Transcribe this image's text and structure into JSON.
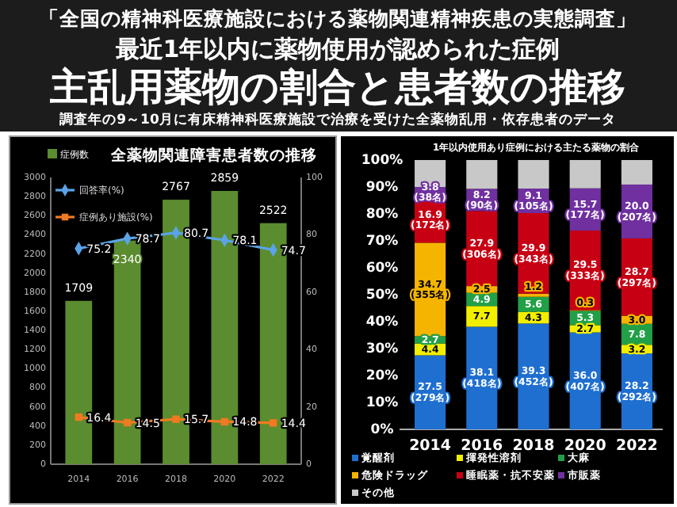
{
  "chart_data": [
    {
      "type": "other",
      "title": "主乱用薬物の割合と患者数の推移",
      "subtitle": "調査年の9～10月に有床精神科医療施設で治療を受けた全薬物乱用・依存患者のデータ",
      "annotations": [
        "「全国の精神科医療施設における薬物関連精神疾患の実態調査」",
        "最近1年以内に薬物使用が認められた症例"
      ]
    },
    {
      "type": "bar",
      "title": "全薬物関連障害患者数の推移",
      "categories": [
        "2014",
        "2016",
        "2018",
        "2020",
        "2022"
      ],
      "ylim": [
        0,
        3000
      ],
      "yticks": [
        0,
        200,
        400,
        600,
        800,
        1000,
        1200,
        1400,
        1600,
        1800,
        2000,
        2200,
        2400,
        2600,
        2800,
        3000
      ],
      "y2lim": [
        0,
        100
      ],
      "y2ticks": [
        0,
        20,
        40,
        60,
        80,
        100
      ],
      "data_labels": true,
      "legend": "top left",
      "series": [
        {
          "name": "症例数",
          "type": "bar",
          "color": "#5b8c2f",
          "values": [
            1709,
            2340,
            2767,
            2859,
            2522
          ]
        },
        {
          "name": "回答率(%)",
          "type": "line",
          "axis": "y2",
          "marker": "diamond",
          "color": "#5ba3e6",
          "values": [
            75.2,
            78.7,
            80.7,
            78.1,
            74.7
          ]
        },
        {
          "name": "症例あり施設(%)",
          "type": "line",
          "axis": "y2",
          "marker": "square",
          "color": "#f07a22",
          "values": [
            16.4,
            14.5,
            15.7,
            14.8,
            14.4
          ]
        }
      ]
    },
    {
      "type": "bar",
      "stacked": true,
      "title": "1年以内使用あり症例における主たる薬物の割合",
      "categories": [
        "2014",
        "2016",
        "2018",
        "2020",
        "2022"
      ],
      "ylim": [
        0,
        100
      ],
      "yticks": [
        {
          "value": 0,
          "label": "0%"
        },
        {
          "value": 10,
          "label": "10%"
        },
        {
          "value": 20,
          "label": "20%"
        },
        {
          "value": 30,
          "label": "30%"
        },
        {
          "value": 40,
          "label": "40%"
        },
        {
          "value": 50,
          "label": "50%"
        },
        {
          "value": 60,
          "label": "60%"
        },
        {
          "value": 70,
          "label": "70%"
        },
        {
          "value": 80,
          "label": "80%"
        },
        {
          "value": 90,
          "label": "90%"
        },
        {
          "value": 100,
          "label": "100%"
        }
      ],
      "legend": "bottom",
      "series": [
        {
          "name": "覚醒剤",
          "color": "#1f6fd0",
          "values": [
            27.5,
            38.1,
            39.3,
            36.0,
            28.2
          ],
          "value_labels": [
            "27.5\n(279名)",
            "38.1\n(418名)",
            "39.3\n(452名)",
            "36.0\n(407名)",
            "28.2\n(292名)"
          ]
        },
        {
          "name": "揮発性溶剤",
          "color": "#f2ee00",
          "values": [
            4.4,
            7.7,
            4.3,
            2.7,
            3.2
          ],
          "value_labels": [
            "4.4",
            "7.7",
            "4.3",
            "2.7",
            "3.2"
          ]
        },
        {
          "name": "大麻",
          "color": "#22a048",
          "values": [
            2.7,
            4.9,
            5.6,
            5.3,
            7.8
          ],
          "value_labels": [
            "2.7",
            "4.9",
            "5.6",
            "5.3",
            "7.8"
          ]
        },
        {
          "name": "危険ドラッグ",
          "color": "#f5b400",
          "values": [
            34.7,
            2.5,
            1.2,
            0.3,
            3.0
          ],
          "value_labels": [
            "34.7\n(355名)",
            "2.5",
            "1.2",
            "0.3",
            "3.0"
          ]
        },
        {
          "name": "睡眠薬・抗不安薬",
          "color": "#c80014",
          "values": [
            16.9,
            27.9,
            29.9,
            29.5,
            28.7
          ],
          "value_labels": [
            "16.9\n(172名)",
            "27.9\n(306名)",
            "29.9\n(343名)",
            "29.5\n(333名)",
            "28.7\n(297名)"
          ]
        },
        {
          "name": "市販薬",
          "color": "#7030a0",
          "values": [
            3.8,
            8.2,
            9.1,
            15.7,
            20.0
          ],
          "value_labels": [
            "3.8\n(38名)",
            "8.2\n(90名)",
            "9.1\n(105名)",
            "15.7\n(177名)",
            "20.0\n(207名)"
          ]
        },
        {
          "name": "その他",
          "color": "#c8c8c8",
          "values": [
            10.0,
            10.7,
            10.6,
            10.5,
            9.1
          ],
          "value_labels": [
            null,
            null,
            null,
            null,
            null
          ]
        }
      ]
    }
  ]
}
